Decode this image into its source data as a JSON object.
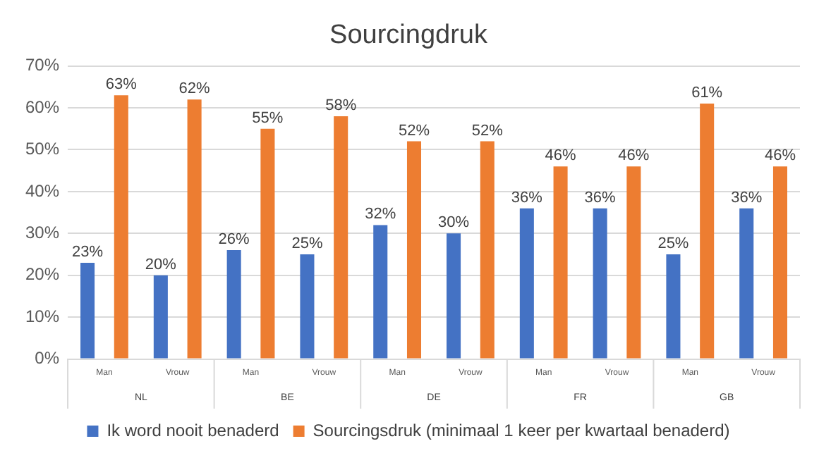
{
  "chart_data": {
    "type": "bar",
    "title": "Sourcingdruk",
    "categories": [
      "Man",
      "Vrouw",
      "Man",
      "Vrouw",
      "Man",
      "Vrouw",
      "Man",
      "Vrouw",
      "Man",
      "Vrouw"
    ],
    "series": [
      {
        "name": "Ik word nooit benaderd",
        "color": "#4472c4",
        "values": [
          23,
          20,
          26,
          25,
          32,
          30,
          36,
          36,
          25,
          36
        ],
        "value_labels": [
          "23%",
          "20%",
          "26%",
          "25%",
          "32%",
          "30%",
          "36%",
          "36%",
          "25%",
          "36%"
        ]
      },
      {
        "name": "Sourcingsdruk (minimaal 1 keer per kwartaal benaderd)",
        "color": "#ed7d31",
        "values": [
          63,
          62,
          55,
          58,
          52,
          52,
          46,
          46,
          61,
          46
        ],
        "value_labels": [
          "63%",
          "62%",
          "55%",
          "58%",
          "52%",
          "52%",
          "46%",
          "46%",
          "61%",
          "46%"
        ]
      }
    ],
    "annotations": [
      "NL",
      "BE",
      "DE",
      "FR",
      "GB"
    ],
    "ylim": [
      0,
      70
    ],
    "yticks": [
      {
        "value": 0,
        "label": "0%"
      },
      {
        "value": 10,
        "label": "10%"
      },
      {
        "value": 20,
        "label": "20%"
      },
      {
        "value": 30,
        "label": "30%"
      },
      {
        "value": 40,
        "label": "40%"
      },
      {
        "value": 50,
        "label": "50%"
      },
      {
        "value": 60,
        "label": "60%"
      },
      {
        "value": 70,
        "label": "70%"
      }
    ],
    "grid": "y",
    "legend": "bottom"
  }
}
